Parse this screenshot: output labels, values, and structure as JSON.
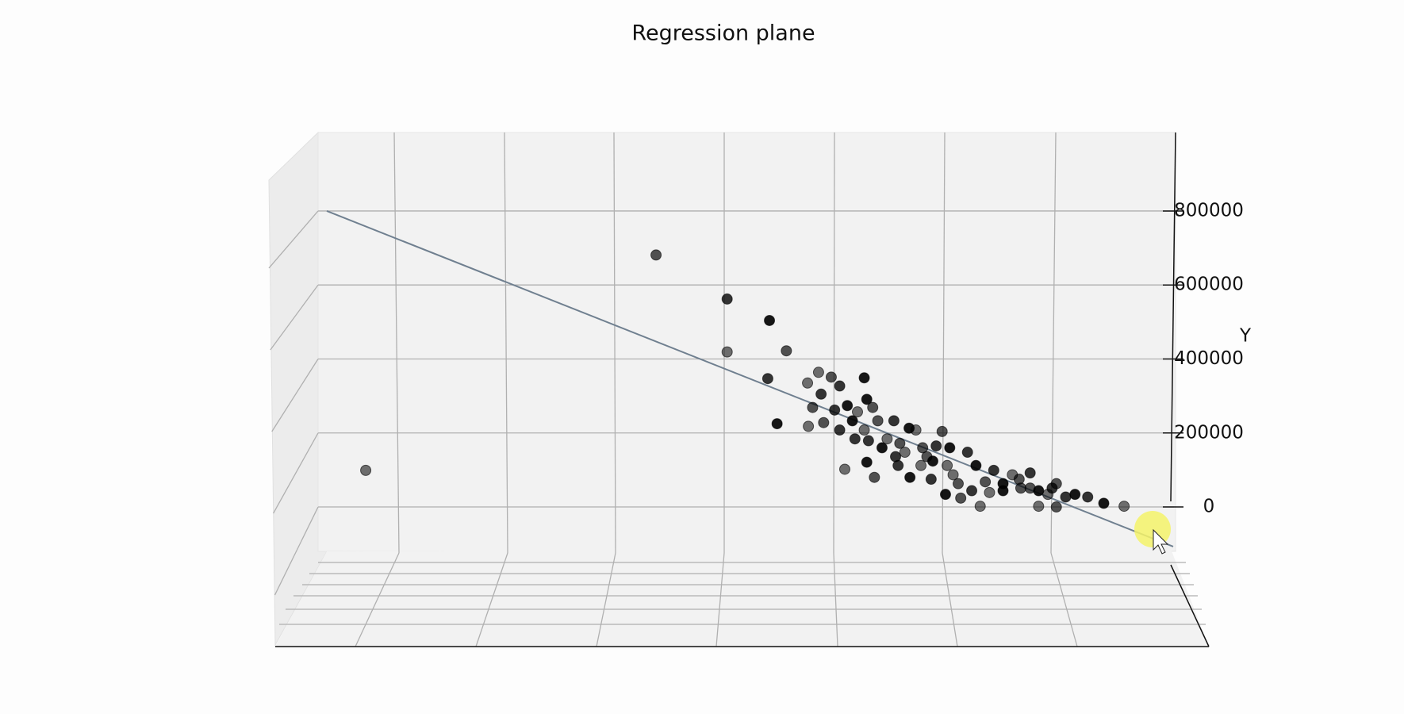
{
  "chart_data": {
    "type": "scatter",
    "title": "Regression plane",
    "ylabel": "Y",
    "x": [
      0.46,
      3.89,
      4.73,
      5.23,
      4.73,
      5.43,
      5.21,
      5.32,
      5.81,
      5.96,
      6.06,
      6.35,
      5.68,
      5.74,
      5.84,
      6.38,
      5.69,
      5.87,
      6.0,
      6.15,
      6.27,
      6.45,
      6.06,
      6.21,
      6.35,
      6.51,
      6.7,
      6.88,
      6.96,
      7.27,
      7.2,
      7.36,
      6.62,
      6.77,
      6.72,
      6.38,
      6.12,
      6.47,
      6.75,
      6.89,
      7.02,
      7.09,
      7.14,
      7.31,
      7.4,
      7.49,
      7.57,
      7.67,
      7.72,
      7.78,
      7.88,
      7.99,
      8.1,
      8.2,
      8.31,
      8.41,
      8.52,
      8.62,
      8.73,
      8.84,
      8.41,
      8.62,
      8.99,
      9.18,
      9.42,
      7.46,
      7.62,
      7.99,
      7.83,
      8.18,
      6.4,
      6.56,
      6.83,
      7.04,
      6.24,
      7.16,
      7.33,
      8.31,
      8.57
    ],
    "values": [
      99000,
      681000,
      562000,
      504000,
      419000,
      422000,
      347000,
      225000,
      364000,
      351000,
      327000,
      349000,
      335000,
      269000,
      305000,
      291000,
      218000,
      228000,
      262000,
      274000,
      257000,
      269000,
      208000,
      233000,
      208000,
      233000,
      233000,
      213000,
      208000,
      204000,
      165000,
      160000,
      184000,
      172000,
      136000,
      121000,
      102000,
      80000,
      112000,
      80000,
      112000,
      136000,
      75000,
      34000,
      87000,
      24000,
      148000,
      112000,
      2000,
      68000,
      99000,
      63000,
      87000,
      51000,
      92000,
      44000,
      34000,
      63000,
      27000,
      34000,
      2000,
      0,
      27000,
      10000,
      2000,
      63000,
      44000,
      44000,
      39000,
      75000,
      179000,
      160000,
      148000,
      160000,
      184000,
      124000,
      112000,
      51000,
      51000
    ],
    "color": "#000000",
    "fit": {
      "x": [
        0,
        10
      ],
      "values": [
        800000,
        -107000
      ],
      "color": "#708090"
    },
    "xlim": [
      0,
      10
    ],
    "ylim": [
      -120000,
      1010000
    ],
    "yticks": [
      0,
      200000,
      400000,
      600000,
      800000
    ],
    "grid": true
  }
}
